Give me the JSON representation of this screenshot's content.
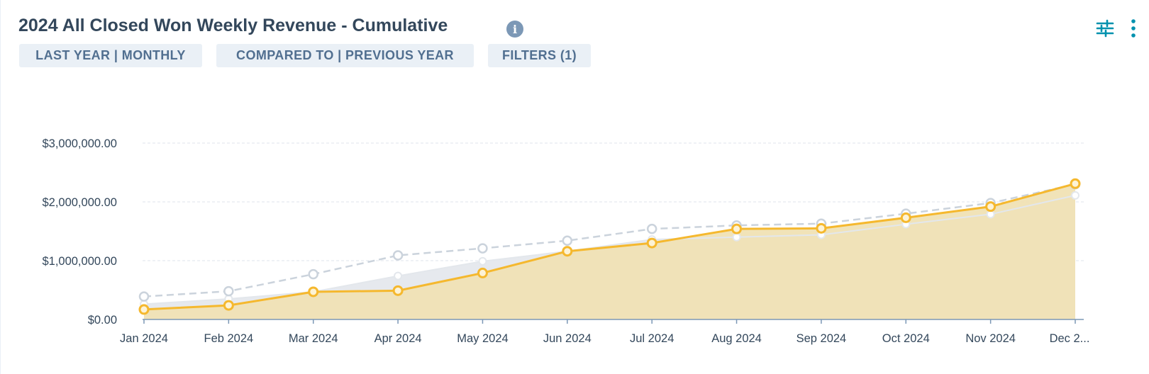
{
  "header": {
    "title": "2024 All Closed Won Weekly Revenue - Cumulative",
    "info_icon": "info-icon",
    "pills": [
      "LAST YEAR | MONTHLY",
      "COMPARED TO | PREVIOUS YEAR",
      "FILTERS (1)"
    ],
    "controls": [
      "sliders-icon",
      "more-vertical-icon"
    ]
  },
  "colors": {
    "current_line": "#f5b82e",
    "current_fill": "#f0e2b4",
    "previous_line": "#cbd3dc",
    "previous_fill": "#e6e9ee",
    "compare_line": "#cbd3dc",
    "grid": "#dfe3eb",
    "axis": "#7c98b6"
  },
  "chart_data": {
    "type": "line",
    "categories": [
      "Jan 2024",
      "Feb 2024",
      "Mar 2024",
      "Apr 2024",
      "May 2024",
      "Jun 2024",
      "Jul 2024",
      "Aug 2024",
      "Sep 2024",
      "Oct 2024",
      "Nov 2024",
      "Dec 2..."
    ],
    "y_ticks": [
      "$0.00",
      "$1,000,000.00",
      "$2,000,000.00",
      "$3,000,000.00"
    ],
    "ylim": [
      0,
      3000000
    ],
    "grid": true,
    "series": [
      {
        "role": "current",
        "style": "solid-area",
        "values": [
          170000,
          240000,
          470000,
          490000,
          790000,
          1160000,
          1300000,
          1540000,
          1550000,
          1730000,
          1920000,
          2310000
        ]
      },
      {
        "role": "previous",
        "style": "area",
        "values": [
          260000,
          350000,
          470000,
          740000,
          990000,
          1160000,
          1360000,
          1400000,
          1440000,
          1620000,
          1790000,
          2110000
        ]
      },
      {
        "role": "compare",
        "style": "dashed",
        "values": [
          390000,
          480000,
          770000,
          1090000,
          1210000,
          1340000,
          1540000,
          1600000,
          1630000,
          1800000,
          1980000,
          2300000
        ]
      }
    ]
  }
}
